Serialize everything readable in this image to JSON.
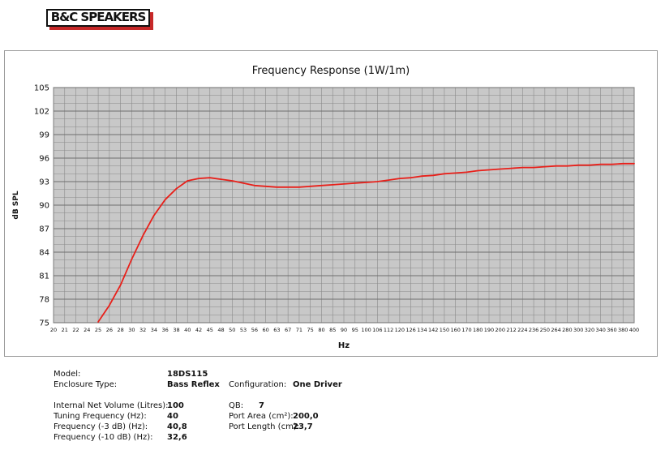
{
  "logo": {
    "text": "B&C SPEAKERS"
  },
  "colors": {
    "plot_bg": "#c8c8c8",
    "grid": "#8a8a8a",
    "curve": "#e8201a",
    "logo_shadow": "#c62828"
  },
  "chart_data": {
    "type": "line",
    "title": "Frequency Response (1W/1m)",
    "xlabel": "Hz",
    "ylabel": "dB SPL",
    "ylim": [
      75,
      105
    ],
    "yticks": [
      75,
      78,
      81,
      84,
      87,
      90,
      93,
      96,
      99,
      102,
      105
    ],
    "x_categories": [
      "20",
      "21",
      "22",
      "24",
      "25",
      "26",
      "28",
      "30",
      "32",
      "34",
      "36",
      "38",
      "40",
      "42",
      "45",
      "48",
      "50",
      "53",
      "56",
      "60",
      "63",
      "67",
      "71",
      "75",
      "80",
      "85",
      "90",
      "95",
      "100",
      "106",
      "112",
      "120",
      "126",
      "134",
      "142",
      "150",
      "160",
      "170",
      "180",
      "190",
      "200",
      "212",
      "224",
      "236",
      "250",
      "264",
      "280",
      "300",
      "320",
      "340",
      "360",
      "380",
      "400"
    ],
    "grid": true,
    "series": [
      {
        "x": [
          25,
          26,
          28,
          30,
          32,
          34,
          36,
          38,
          40,
          42,
          45,
          48,
          50,
          53,
          56,
          60,
          63,
          67,
          71,
          75,
          80,
          85,
          90,
          95,
          100,
          106,
          112,
          120,
          126,
          134,
          142,
          150,
          160,
          170,
          180,
          190,
          200,
          212,
          224,
          236,
          250,
          264,
          280,
          300,
          320,
          340,
          360,
          380,
          400
        ],
        "y": [
          75.1,
          77.2,
          79.8,
          83.1,
          86.1,
          88.7,
          90.7,
          92.1,
          93.1,
          93.4,
          93.5,
          93.3,
          93.1,
          92.8,
          92.5,
          92.4,
          92.3,
          92.3,
          92.3,
          92.4,
          92.5,
          92.6,
          92.7,
          92.8,
          92.9,
          93.0,
          93.2,
          93.4,
          93.5,
          93.7,
          93.8,
          94.0,
          94.1,
          94.2,
          94.4,
          94.5,
          94.6,
          94.7,
          94.8,
          94.8,
          94.9,
          95.0,
          95.0,
          95.1,
          95.1,
          95.2,
          95.2,
          95.3,
          95.3
        ]
      }
    ]
  },
  "specs": {
    "model_label": "Model:",
    "model_value": "18DS115",
    "enclosure_label": "Enclosure Type:",
    "enclosure_value": "Bass Reflex",
    "config_label": "Configuration:",
    "config_value": "One Driver",
    "volume_label": "Internal Net Volume (Litres):",
    "volume_value": "100",
    "tuning_label": "Tuning Frequency (Hz):",
    "tuning_value": "40",
    "f3_label": "Frequency (-3 dB) (Hz):",
    "f3_value": "40,8",
    "f10_label": "Frequency (-10 dB) (Hz):",
    "f10_value": "32,6",
    "qb_label": "QB:",
    "qb_value": "7",
    "port_area_label": "Port Area (cm²):",
    "port_area_value": "200,0",
    "port_length_label": "Port Length (cm):",
    "port_length_value": "23,7"
  }
}
